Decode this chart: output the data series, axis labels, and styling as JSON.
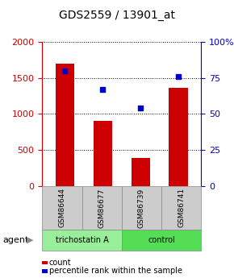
{
  "title": "GDS2559 / 13901_at",
  "categories": [
    "GSM86644",
    "GSM86677",
    "GSM86739",
    "GSM86741"
  ],
  "bar_values": [
    1700,
    900,
    390,
    1360
  ],
  "scatter_values": [
    80,
    67,
    54,
    76
  ],
  "bar_color": "#cc0000",
  "scatter_color": "#0000cc",
  "ylim_left": [
    0,
    2000
  ],
  "ylim_right": [
    0,
    100
  ],
  "yticks_left": [
    0,
    500,
    1000,
    1500,
    2000
  ],
  "yticks_right": [
    0,
    25,
    50,
    75,
    100
  ],
  "yticklabels_right": [
    "0",
    "25",
    "50",
    "75",
    "100%"
  ],
  "groups": [
    {
      "label": "trichostatin A",
      "cols": [
        0,
        1
      ],
      "color": "#99ee99"
    },
    {
      "label": "control",
      "cols": [
        2,
        3
      ],
      "color": "#55dd55"
    }
  ],
  "agent_label": "agent",
  "legend_count_label": "count",
  "legend_pct_label": "percentile rank within the sample",
  "background_color": "#ffffff",
  "plot_bg_color": "#ffffff",
  "gsm_box_color": "#cccccc"
}
